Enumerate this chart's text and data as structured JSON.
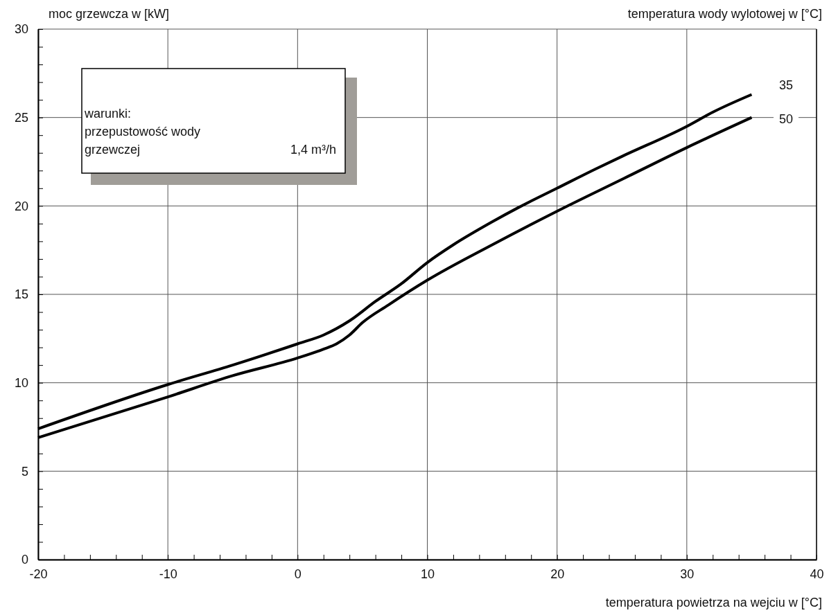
{
  "chart_data": {
    "type": "line",
    "ylabel": "moc grzewcza w [kW]",
    "legend_title": "temperatura wody wylotowej w [°C]",
    "xlabel": "temperatura powietrza na wejciu w [°C]",
    "annotations": [
      "warunki:",
      "przepustowość wody",
      "grzewczej",
      "1,4 m³/h"
    ],
    "xlim": [
      -20,
      40
    ],
    "ylim": [
      0,
      30
    ],
    "xticks": [
      -20,
      {
        "value": -18,
        "label": null
      },
      {
        "value": -16,
        "label": null
      },
      {
        "value": -14,
        "label": null
      },
      {
        "value": -12,
        "label": null
      },
      -10,
      {
        "value": -8,
        "label": null
      },
      {
        "value": -6,
        "label": null
      },
      {
        "value": -4,
        "label": null
      },
      {
        "value": -2,
        "label": null
      },
      0,
      {
        "value": 2,
        "label": null
      },
      {
        "value": 4,
        "label": null
      },
      {
        "value": 6,
        "label": null
      },
      {
        "value": 8,
        "label": null
      },
      10,
      {
        "value": 12,
        "label": null
      },
      {
        "value": 14,
        "label": null
      },
      {
        "value": 16,
        "label": null
      },
      {
        "value": 18,
        "label": null
      },
      20,
      {
        "value": 22,
        "label": null
      },
      {
        "value": 24,
        "label": null
      },
      {
        "value": 26,
        "label": null
      },
      {
        "value": 28,
        "label": null
      },
      30,
      {
        "value": 32,
        "label": null
      },
      {
        "value": 34,
        "label": null
      },
      {
        "value": 36,
        "label": null
      },
      {
        "value": 38,
        "label": null
      },
      40
    ],
    "yticks": [
      0,
      {
        "value": 1,
        "label": null
      },
      {
        "value": 2,
        "label": null
      },
      {
        "value": 3,
        "label": null
      },
      {
        "value": 4,
        "label": null
      },
      5,
      {
        "value": 6,
        "label": null
      },
      {
        "value": 7,
        "label": null
      },
      {
        "value": 8,
        "label": null
      },
      {
        "value": 9,
        "label": null
      },
      10,
      {
        "value": 11,
        "label": null
      },
      {
        "value": 12,
        "label": null
      },
      {
        "value": 13,
        "label": null
      },
      {
        "value": 14,
        "label": null
      },
      15,
      {
        "value": 16,
        "label": null
      },
      {
        "value": 17,
        "label": null
      },
      {
        "value": 18,
        "label": null
      },
      {
        "value": 19,
        "label": null
      },
      20,
      {
        "value": 21,
        "label": null
      },
      {
        "value": 22,
        "label": null
      },
      {
        "value": 23,
        "label": null
      },
      {
        "value": 24,
        "label": null
      },
      25,
      {
        "value": 26,
        "label": null
      },
      {
        "value": 27,
        "label": null
      },
      {
        "value": 28,
        "label": null
      },
      {
        "value": 29,
        "label": null
      },
      30
    ],
    "grid": true,
    "legend": false,
    "marker": "none",
    "line_style": "solid",
    "series": [
      {
        "name": "35",
        "color": "#000000",
        "x": [
          -20,
          -10,
          -5,
          0,
          2,
          4,
          6,
          8,
          10,
          12,
          15,
          17,
          20,
          23,
          25,
          30,
          32,
          35
        ],
        "values": [
          7.4,
          9.9,
          11.0,
          12.2,
          12.7,
          13.5,
          14.6,
          15.6,
          16.8,
          17.8,
          19.1,
          19.9,
          21.0,
          22.1,
          22.8,
          24.5,
          25.3,
          26.3
        ]
      },
      {
        "name": "50",
        "color": "#000000",
        "x": [
          -20,
          -10,
          -5,
          0,
          2,
          3,
          4,
          5,
          7,
          10,
          15,
          20,
          25,
          30,
          35
        ],
        "values": [
          6.9,
          9.2,
          10.4,
          11.4,
          11.9,
          12.2,
          12.7,
          13.4,
          14.4,
          15.8,
          17.8,
          19.7,
          21.5,
          23.3,
          25.0
        ]
      }
    ]
  }
}
